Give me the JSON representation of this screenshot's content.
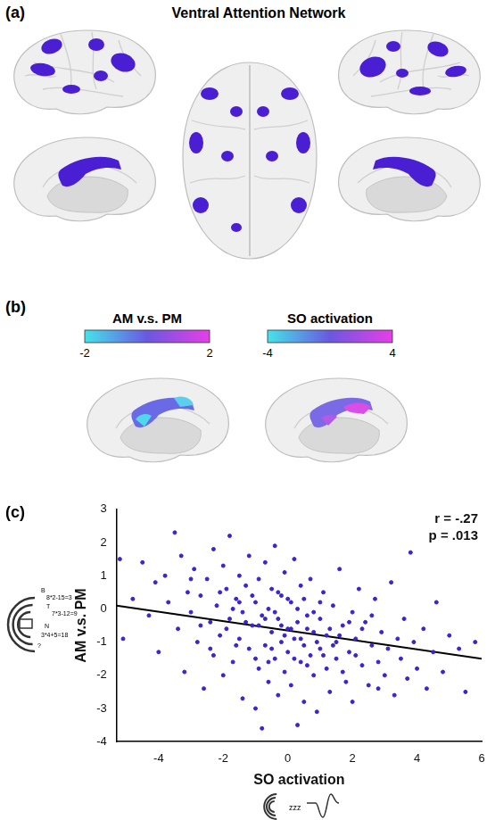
{
  "panel_a": {
    "letter": "(a)",
    "title": "Ventral Attention Network"
  },
  "panel_b": {
    "letter": "(b)",
    "maps": [
      {
        "title": "AM v.s. PM",
        "colorbar": {
          "range": [
            -2,
            2
          ],
          "ticks": [
            -2,
            2
          ]
        }
      },
      {
        "title": "SO activation",
        "colorbar": {
          "range": [
            -4,
            4
          ],
          "ticks": [
            -4,
            4
          ]
        }
      }
    ]
  },
  "chart_data": {
    "type": "scatter",
    "panel": "(c)",
    "x_label": "SO activation",
    "y_label": "AM v.s. PM",
    "annotations": [
      "r = -.27",
      "p = .013"
    ],
    "color": "#3d22d0",
    "grid": false,
    "xlim": [
      -5.3,
      6
    ],
    "xticks": [
      -4,
      -2,
      0,
      2,
      4,
      6
    ],
    "ylim": [
      -4,
      3
    ],
    "yticks": [
      -4,
      -3,
      -2,
      -1,
      0,
      1,
      2,
      3
    ],
    "fit_line": {
      "x": [
        -5.3,
        6
      ],
      "values": [
        0.1,
        -1.5
      ]
    },
    "x": [
      -5.2,
      -5.1,
      -4.8,
      -4.5,
      -4.3,
      -4.1,
      -4.0,
      -3.8,
      -3.7,
      -3.5,
      -3.4,
      -3.3,
      -3.2,
      -3.1,
      -3.0,
      -2.9,
      -2.8,
      -2.7,
      -2.6,
      -2.5,
      -2.4,
      -2.3,
      -2.3,
      -2.2,
      -2.1,
      -2.0,
      -2.0,
      -1.9,
      -1.8,
      -1.8,
      -1.7,
      -1.6,
      -1.5,
      -1.5,
      -1.4,
      -1.4,
      -1.3,
      -1.2,
      -1.2,
      -1.1,
      -1.0,
      -1.0,
      -0.9,
      -0.9,
      -0.8,
      -0.8,
      -0.7,
      -0.7,
      -0.6,
      -0.6,
      -0.5,
      -0.5,
      -0.4,
      -0.4,
      -0.3,
      -0.3,
      -0.2,
      -0.2,
      -0.1,
      -0.1,
      0.0,
      0.0,
      0.1,
      0.1,
      0.2,
      0.2,
      0.3,
      0.3,
      0.4,
      0.4,
      0.5,
      0.5,
      0.6,
      0.7,
      0.7,
      0.8,
      0.8,
      0.9,
      1.0,
      1.0,
      1.1,
      1.2,
      1.2,
      1.3,
      1.4,
      1.5,
      1.5,
      1.6,
      1.7,
      1.8,
      1.9,
      2.0,
      2.0,
      2.1,
      2.2,
      2.3,
      2.4,
      2.5,
      2.6,
      2.7,
      2.8,
      2.9,
      3.0,
      3.1,
      3.2,
      3.3,
      3.4,
      3.5,
      3.6,
      3.7,
      3.8,
      3.9,
      4.0,
      4.2,
      4.3,
      4.5,
      4.6,
      4.8,
      5.0,
      5.3,
      5.5,
      5.8,
      -1.9,
      -1.6,
      -1.3,
      -1.1,
      -0.9,
      -0.7,
      -0.5,
      -0.4,
      -0.2,
      -0.1,
      0.0,
      0.1,
      0.2,
      0.3,
      0.4,
      0.6,
      0.6,
      0.8,
      0.9,
      1.1,
      1.3,
      1.4,
      1.6,
      1.7,
      1.9,
      2.1,
      2.3,
      -2.1,
      -2.4,
      -2.7,
      -3.0,
      -1.5,
      -1.0,
      -0.3,
      0.5,
      1.0,
      -0.6,
      -1.7,
      2.6,
      2.8
    ],
    "values": [
      1.5,
      -0.9,
      0.3,
      1.4,
      -0.2,
      0.8,
      -1.3,
      1.0,
      0.2,
      2.3,
      -0.6,
      1.6,
      -1.9,
      0.5,
      -0.1,
      1.2,
      -1.0,
      0.4,
      -2.4,
      0.9,
      -0.4,
      1.8,
      -1.4,
      0.1,
      -0.8,
      1.3,
      -2.0,
      0.6,
      2.2,
      -0.3,
      -1.6,
      0.3,
      -0.9,
      1.0,
      -2.7,
      -0.1,
      0.7,
      -1.2,
      1.6,
      -0.5,
      0.2,
      -3.0,
      -1.8,
      0.9,
      -3.6,
      -0.2,
      -1.1,
      1.4,
      0.0,
      -2.2,
      -0.7,
      0.6,
      -1.5,
      1.9,
      -0.3,
      -2.6,
      0.4,
      -1.0,
      -1.9,
      1.1,
      -0.6,
      -1.3,
      0.2,
      -2.3,
      -0.9,
      1.5,
      -3.5,
      -0.4,
      -1.6,
      0.7,
      -1.1,
      -2.8,
      -0.2,
      -1.4,
      0.9,
      -0.7,
      -2.0,
      -3.1,
      -0.3,
      -1.2,
      0.5,
      -1.8,
      -0.8,
      -2.5,
      0.1,
      -1.0,
      -1.5,
      1.2,
      -0.5,
      -2.2,
      -1.3,
      -0.1,
      -2.8,
      -0.9,
      0.6,
      -1.7,
      -0.4,
      -2.3,
      -1.1,
      0.3,
      -1.6,
      -0.7,
      -2.0,
      -1.2,
      0.8,
      -2.6,
      -0.9,
      -1.5,
      -0.3,
      -2.1,
      1.7,
      -1.0,
      -1.8,
      -0.6,
      -2.4,
      -1.3,
      0.2,
      -1.9,
      -0.8,
      -1.2,
      -2.5,
      -1.0,
      -0.6,
      -1.1,
      -0.4,
      0.4,
      -0.5,
      -0.3,
      -1.2,
      -0.1,
      -0.5,
      -0.8,
      0.3,
      -0.6,
      -1.5,
      0.0,
      -0.9,
      -0.6,
      -1.7,
      -0.1,
      -1.0,
      -1.4,
      -0.6,
      -1.1,
      -0.8,
      -1.9,
      -0.4,
      -1.4,
      -0.6,
      0.5,
      -1.2,
      -0.5,
      0.9,
      0.2,
      -1.5,
      0.5,
      0.3,
      0.2,
      -1.6,
      0.0,
      -0.2,
      -2.4
    ]
  },
  "icons": {
    "task_text": [
      "B",
      "8*2-15=3",
      "T",
      "7*3-12=9",
      "N",
      "3*4+5=18",
      "?"
    ],
    "sleep_text": "zzz"
  }
}
